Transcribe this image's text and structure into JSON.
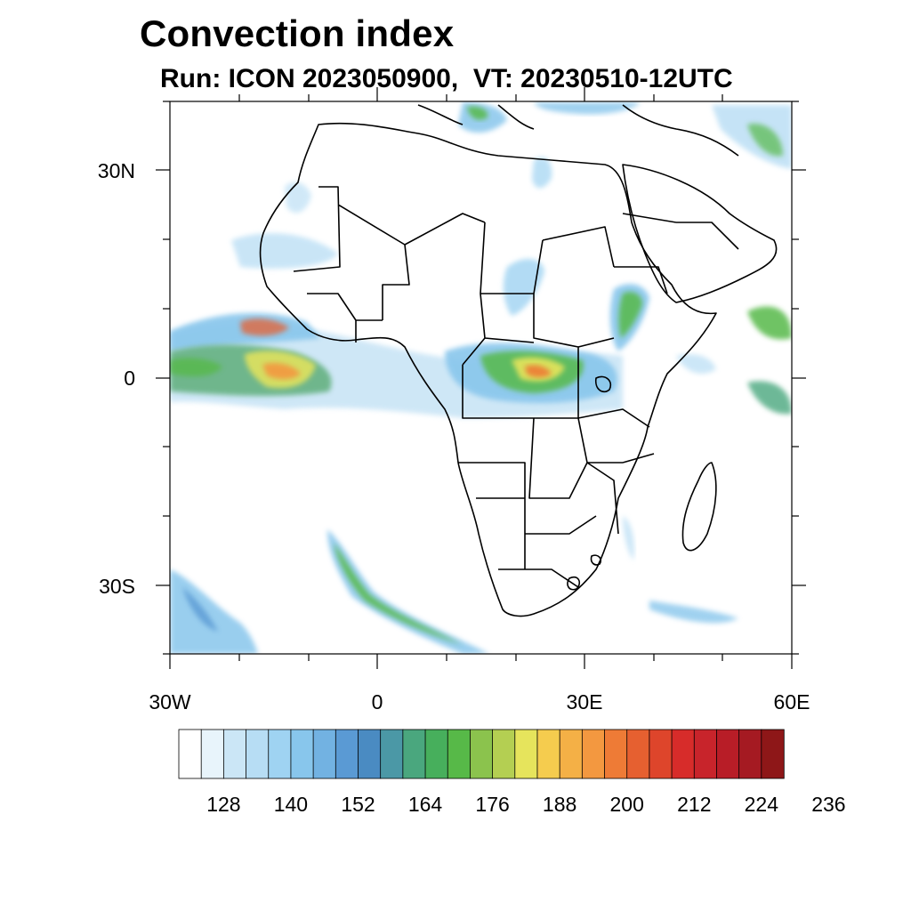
{
  "title": "Convection index",
  "subtitle": "Run: ICON 2023050900,  VT: 20230510-12UTC",
  "map": {
    "region": "Africa",
    "lon_range": [
      -30,
      60
    ],
    "lat_range": [
      -40,
      40
    ],
    "lat_labels": [
      "30N",
      "0",
      "30S"
    ],
    "lon_labels": [
      "30W",
      "0",
      "30E",
      "60E"
    ]
  },
  "colorbar": {
    "tick_labels": [
      "128",
      "140",
      "152",
      "164",
      "176",
      "188",
      "200",
      "212",
      "224",
      "236"
    ],
    "colors": [
      "#ffffff",
      "#e8f4fb",
      "#cbe6f6",
      "#b7ddf4",
      "#9fd3f2",
      "#88c6ec",
      "#72b2e2",
      "#5a9ad4",
      "#4a8bc2",
      "#4b98a6",
      "#4aa77e",
      "#47af5c",
      "#57b948",
      "#8bc34d",
      "#b4cf52",
      "#e6e45c",
      "#f5cc4e",
      "#f4b046",
      "#f39840",
      "#ee7b36",
      "#e66030",
      "#de452b",
      "#d72c2a",
      "#c8242b",
      "#b81d27",
      "#a51a22",
      "#8e1718"
    ]
  }
}
